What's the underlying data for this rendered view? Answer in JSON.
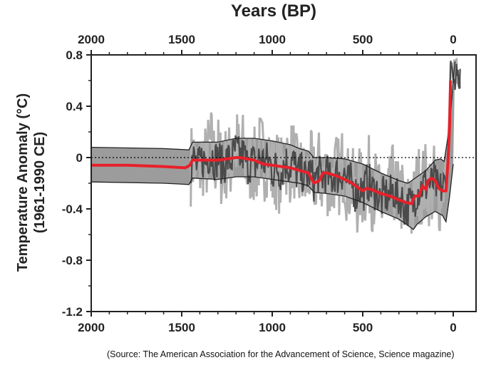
{
  "chart_data": {
    "type": "line",
    "title": "Years (BP)",
    "xlabel": "",
    "ylabel": "Temperature Anomaly (°C)",
    "ylabel_sub": "(1961-1990 CE)",
    "xlim": [
      2000,
      -50
    ],
    "ylim": [
      -1.2,
      0.8
    ],
    "x_ticks": [
      2000,
      1500,
      1000,
      500,
      0
    ],
    "x_tick_labels": [
      "2000",
      "1500",
      "1000",
      "500",
      "0"
    ],
    "y_ticks": [
      0.8,
      0.4,
      0,
      -0.4,
      -0.8,
      -1.2
    ],
    "y_tick_labels": [
      "0.8",
      "0.4",
      "0",
      "-0.4",
      "-0.8",
      "-1.2"
    ],
    "zero_line": "dotted",
    "series": [
      {
        "type": "mean",
        "color": "#e8202a",
        "x": [
          2000,
          1800,
          1600,
          1480,
          1455,
          1440,
          1300,
          1200,
          1180,
          1100,
          1050,
          1000,
          950,
          900,
          850,
          800,
          770,
          740,
          720,
          700,
          650,
          600,
          560,
          520,
          500,
          480,
          450,
          400,
          350,
          300,
          260,
          230,
          220,
          210,
          190,
          170,
          150,
          140,
          120,
          100,
          80,
          60,
          40,
          30,
          20,
          15
        ],
        "y": [
          -0.06,
          -0.06,
          -0.07,
          -0.08,
          -0.06,
          -0.02,
          -0.02,
          0.0,
          0.0,
          -0.02,
          -0.05,
          -0.06,
          -0.07,
          -0.08,
          -0.1,
          -0.12,
          -0.2,
          -0.18,
          -0.12,
          -0.12,
          -0.14,
          -0.17,
          -0.2,
          -0.24,
          -0.26,
          -0.24,
          -0.25,
          -0.28,
          -0.3,
          -0.33,
          -0.35,
          -0.36,
          -0.32,
          -0.3,
          -0.3,
          -0.22,
          -0.25,
          -0.18,
          -0.16,
          -0.18,
          -0.24,
          -0.26,
          -0.26,
          -0.05,
          0.25,
          0.6
        ]
      },
      {
        "type": "upper_bound",
        "color": "#222222",
        "x": [
          2000,
          1600,
          1460,
          1440,
          1300,
          1200,
          1100,
          1000,
          900,
          850,
          800,
          770,
          700,
          600,
          500,
          400,
          300,
          250,
          200,
          150,
          100,
          70,
          50,
          20,
          0,
          -10
        ],
        "y": [
          0.08,
          0.07,
          0.06,
          0.12,
          0.12,
          0.15,
          0.15,
          0.13,
          0.1,
          0.07,
          0.05,
          0.0,
          0.0,
          -0.01,
          -0.05,
          -0.12,
          -0.18,
          -0.2,
          -0.15,
          -0.1,
          -0.02,
          -0.01,
          -0.03,
          0.25,
          0.6,
          0.75
        ]
      },
      {
        "type": "lower_bound",
        "color": "#222222",
        "x": [
          2000,
          1600,
          1460,
          1440,
          1300,
          1200,
          1100,
          1000,
          900,
          850,
          800,
          770,
          700,
          600,
          500,
          400,
          300,
          250,
          220,
          200,
          150,
          100,
          60,
          40,
          20,
          0
        ],
        "y": [
          -0.19,
          -0.2,
          -0.21,
          -0.16,
          -0.17,
          -0.15,
          -0.15,
          -0.17,
          -0.19,
          -0.2,
          -0.22,
          -0.27,
          -0.28,
          -0.3,
          -0.35,
          -0.42,
          -0.48,
          -0.53,
          -0.56,
          -0.52,
          -0.46,
          -0.42,
          -0.45,
          -0.5,
          -0.3,
          -0.05
        ]
      }
    ],
    "annotation": "(Source: The American Association for the Advancement of Science, Science magazine)"
  },
  "colors": {
    "envelope_fill": "#9c9c9c",
    "raw_proxy_light": "#b0b0b0",
    "raw_proxy_dark": "#4a4a4a",
    "mean_line": "#e8202a",
    "axis": "#222222"
  }
}
